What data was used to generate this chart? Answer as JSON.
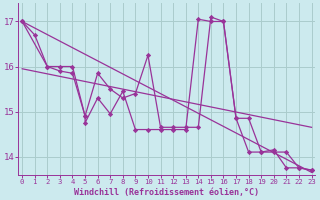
{
  "background_color": "#cceaee",
  "grid_color": "#aacccc",
  "line_color": "#993399",
  "xlabel": "Windchill (Refroidissement éolien,°C)",
  "xlabel_color": "#993399",
  "tick_color": "#993399",
  "xlim": [
    -0.3,
    23.3
  ],
  "ylim": [
    13.6,
    17.4
  ],
  "yticks": [
    14,
    15,
    16,
    17
  ],
  "xticks": [
    0,
    1,
    2,
    3,
    4,
    5,
    6,
    7,
    8,
    9,
    10,
    11,
    12,
    13,
    14,
    15,
    16,
    17,
    18,
    19,
    20,
    21,
    22,
    23
  ],
  "trend1_x": [
    0,
    23
  ],
  "trend1_y": [
    17.0,
    13.65
  ],
  "trend2_x": [
    0,
    23
  ],
  "trend2_y": [
    15.95,
    14.65
  ],
  "series1_x": [
    0,
    1,
    2,
    3,
    4,
    5,
    6,
    7,
    8,
    9,
    10,
    11,
    12,
    13,
    14,
    15,
    16,
    17,
    18,
    19,
    20,
    21,
    22,
    23
  ],
  "series1_y": [
    17.0,
    16.7,
    16.0,
    16.0,
    16.0,
    14.9,
    15.85,
    15.5,
    15.3,
    15.4,
    16.25,
    14.65,
    14.65,
    14.65,
    14.65,
    17.1,
    17.0,
    14.85,
    14.85,
    14.1,
    14.1,
    14.1,
    13.75,
    13.7
  ],
  "series2_x": [
    0,
    2,
    3,
    4,
    5,
    5,
    6,
    7,
    8,
    9,
    10,
    11,
    12,
    13,
    14,
    15,
    16,
    17,
    18,
    19,
    20,
    21,
    22,
    23
  ],
  "series2_y": [
    17.0,
    16.0,
    15.9,
    15.85,
    14.9,
    14.75,
    15.3,
    14.95,
    15.45,
    14.6,
    14.6,
    14.6,
    14.6,
    14.6,
    17.05,
    17.0,
    17.0,
    14.85,
    14.1,
    14.1,
    14.15,
    13.75,
    13.75,
    13.7
  ]
}
